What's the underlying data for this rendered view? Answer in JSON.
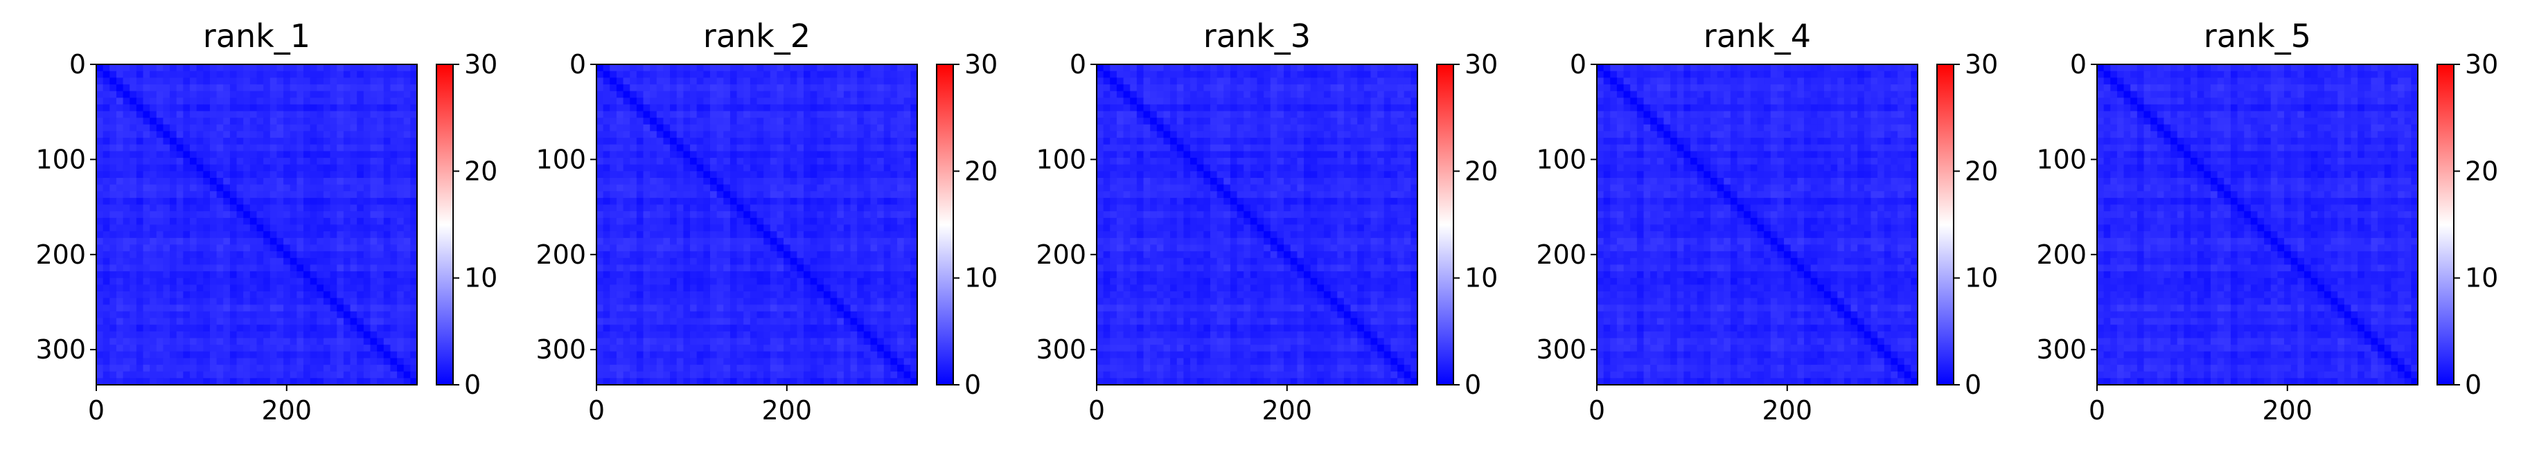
{
  "chart_data": [
    {
      "type": "heatmap",
      "title": "rank_1",
      "xticks": [
        "0",
        "200"
      ],
      "yticks": [
        "0",
        "100",
        "200",
        "300"
      ],
      "xlim": [
        0,
        337
      ],
      "ylim": [
        337,
        0
      ],
      "colorbar": {
        "min": 0,
        "max": 30,
        "ticks": [
          "0",
          "10",
          "20",
          "30"
        ],
        "colormap": [
          "#0000ff",
          "#ffffff",
          "#ff0000"
        ]
      },
      "approx_value_range": [
        0,
        7
      ]
    },
    {
      "type": "heatmap",
      "title": "rank_2",
      "xticks": [
        "0",
        "200"
      ],
      "yticks": [
        "0",
        "100",
        "200",
        "300"
      ],
      "xlim": [
        0,
        337
      ],
      "ylim": [
        337,
        0
      ],
      "colorbar": {
        "min": 0,
        "max": 30,
        "ticks": [
          "0",
          "10",
          "20",
          "30"
        ],
        "colormap": [
          "#0000ff",
          "#ffffff",
          "#ff0000"
        ]
      },
      "approx_value_range": [
        0,
        7
      ]
    },
    {
      "type": "heatmap",
      "title": "rank_3",
      "xticks": [
        "0",
        "200"
      ],
      "yticks": [
        "0",
        "100",
        "200",
        "300"
      ],
      "xlim": [
        0,
        337
      ],
      "ylim": [
        337,
        0
      ],
      "colorbar": {
        "min": 0,
        "max": 30,
        "ticks": [
          "0",
          "10",
          "20",
          "30"
        ],
        "colormap": [
          "#0000ff",
          "#ffffff",
          "#ff0000"
        ]
      },
      "approx_value_range": [
        0,
        7
      ]
    },
    {
      "type": "heatmap",
      "title": "rank_4",
      "xticks": [
        "0",
        "200"
      ],
      "yticks": [
        "0",
        "100",
        "200",
        "300"
      ],
      "xlim": [
        0,
        337
      ],
      "ylim": [
        337,
        0
      ],
      "colorbar": {
        "min": 0,
        "max": 30,
        "ticks": [
          "0",
          "10",
          "20",
          "30"
        ],
        "colormap": [
          "#0000ff",
          "#ffffff",
          "#ff0000"
        ]
      },
      "approx_value_range": [
        0,
        7
      ]
    },
    {
      "type": "heatmap",
      "title": "rank_5",
      "xticks": [
        "0",
        "200"
      ],
      "yticks": [
        "0",
        "100",
        "200",
        "300"
      ],
      "xlim": [
        0,
        337
      ],
      "ylim": [
        337,
        0
      ],
      "colorbar": {
        "min": 0,
        "max": 30,
        "ticks": [
          "0",
          "10",
          "20",
          "30"
        ],
        "colormap": [
          "#0000ff",
          "#ffffff",
          "#ff0000"
        ]
      },
      "approx_value_range": [
        0,
        7
      ]
    }
  ]
}
